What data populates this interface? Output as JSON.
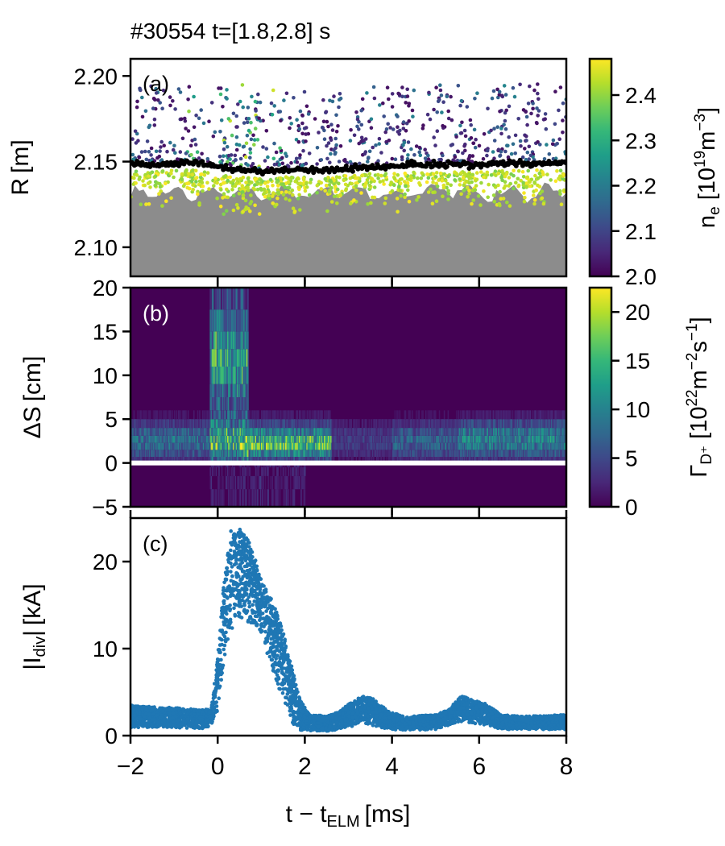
{
  "title": "#30554 t=[1.8,2.8] s",
  "colors": {
    "viridis": [
      "#440154",
      "#482878",
      "#3e4989",
      "#31688e",
      "#26828e",
      "#1f9e89",
      "#35b779",
      "#6ece58",
      "#b5de2b",
      "#fde725"
    ],
    "separatrix": "#000000",
    "core_fill": "#8c8c8c",
    "current": "#1f77b4",
    "strike_line": "#ffffff"
  },
  "chart_data": [
    {
      "panel": "(a)",
      "type": "scatter",
      "xlim": [
        -2,
        8
      ],
      "ylim": [
        2.083,
        2.21
      ],
      "ylabel_main": "R",
      "ylabel_unit": "[m]",
      "yticks": [
        "2.10",
        "2.15",
        "2.20"
      ],
      "ytick_values": [
        2.1,
        2.15,
        2.2
      ],
      "separatrix_R": [
        [
          -2,
          2.149
        ],
        [
          -1.5,
          2.148
        ],
        [
          -1,
          2.149
        ],
        [
          -0.5,
          2.149
        ],
        [
          0,
          2.147
        ],
        [
          0.5,
          2.145
        ],
        [
          1,
          2.144
        ],
        [
          1.5,
          2.145
        ],
        [
          2,
          2.145
        ],
        [
          2.5,
          2.145
        ],
        [
          3,
          2.146
        ],
        [
          3.5,
          2.147
        ],
        [
          4,
          2.147
        ],
        [
          4.5,
          2.148
        ],
        [
          5,
          2.148
        ],
        [
          5.5,
          2.148
        ],
        [
          6,
          2.148
        ],
        [
          6.5,
          2.149
        ],
        [
          7,
          2.149
        ],
        [
          7.5,
          2.149
        ],
        [
          8,
          2.149
        ]
      ],
      "core_fill_top_R": 2.132,
      "colorbar": {
        "label_main": "n",
        "label_sub": "e",
        "label_unit_pre": " [10",
        "label_exp": "19",
        "label_unit_mid": "m",
        "label_exp2": "−3",
        "label_close": "]",
        "range": [
          2.0,
          2.48
        ],
        "ticks": [
          "2.0",
          "2.1",
          "2.2",
          "2.3",
          "2.4"
        ],
        "tick_values": [
          2.0,
          2.1,
          2.2,
          2.3,
          2.4
        ]
      },
      "legend": "none"
    },
    {
      "panel": "(b)",
      "type": "heatmap",
      "xlim": [
        -2,
        8
      ],
      "ylim": [
        -5,
        20
      ],
      "ylabel_main": "ΔS",
      "ylabel_unit": "[cm]",
      "yticks": [
        "−5",
        "0",
        "5",
        "10",
        "15",
        "20"
      ],
      "ytick_values": [
        -5,
        0,
        5,
        10,
        15,
        20
      ],
      "strike_line_dS": 0,
      "colorbar": {
        "label_main": "Γ",
        "label_sub": "D⁺",
        "label_unit_pre": " [10",
        "label_exp": "22",
        "label_unit_mid": "m",
        "label_exp2": "−2",
        "label_unit_mid2": "s",
        "label_exp3": "−1",
        "label_close": "]",
        "range": [
          0,
          22.5
        ],
        "ticks": [
          "0",
          "5",
          "10",
          "15",
          "20"
        ],
        "tick_values": [
          0,
          5,
          10,
          15,
          20
        ]
      }
    },
    {
      "panel": "(c)",
      "type": "scatter",
      "xlim": [
        -2,
        8
      ],
      "ylim": [
        0,
        25
      ],
      "ylabel_main": "|I",
      "ylabel_sub": "div",
      "ylabel_close": "|",
      "ylabel_unit": "[kA]",
      "yticks": [
        "0",
        "10",
        "20"
      ],
      "ytick_values": [
        0,
        10,
        20
      ],
      "xticks": [
        "−2",
        "0",
        "2",
        "4",
        "6",
        "8"
      ],
      "xtick_values": [
        -2,
        0,
        2,
        4,
        6,
        8
      ],
      "xlabel_main": "t − t",
      "xlabel_sub": "ELM",
      "xlabel_unit": "[ms]",
      "envelope_upper": [
        [
          -2,
          3.5
        ],
        [
          -1.5,
          3.3
        ],
        [
          -1,
          3.2
        ],
        [
          -0.5,
          3.0
        ],
        [
          -0.15,
          3.0
        ],
        [
          0,
          9
        ],
        [
          0.15,
          18
        ],
        [
          0.3,
          23.5
        ],
        [
          0.5,
          24
        ],
        [
          0.7,
          22.5
        ],
        [
          0.9,
          20
        ],
        [
          1.1,
          17
        ],
        [
          1.3,
          15
        ],
        [
          1.5,
          12
        ],
        [
          1.7,
          8
        ],
        [
          1.9,
          4
        ],
        [
          2.1,
          2.5
        ],
        [
          2.5,
          2.2
        ],
        [
          2.8,
          2.8
        ],
        [
          3.0,
          3.6
        ],
        [
          3.3,
          4.6
        ],
        [
          3.6,
          4.2
        ],
        [
          3.9,
          2.8
        ],
        [
          4.3,
          2.2
        ],
        [
          5.0,
          2.4
        ],
        [
          5.3,
          3.0
        ],
        [
          5.6,
          4.6
        ],
        [
          5.9,
          4.0
        ],
        [
          6.2,
          3.6
        ],
        [
          6.5,
          2.4
        ],
        [
          7.0,
          2.2
        ],
        [
          7.5,
          2.3
        ],
        [
          8,
          2.4
        ]
      ],
      "envelope_lower": [
        [
          -2,
          0.9
        ],
        [
          -1,
          0.9
        ],
        [
          -0.15,
          0.8
        ],
        [
          0,
          3
        ],
        [
          0.15,
          9
        ],
        [
          0.3,
          12
        ],
        [
          0.5,
          13.5
        ],
        [
          0.7,
          13
        ],
        [
          0.9,
          12.5
        ],
        [
          1.1,
          10
        ],
        [
          1.3,
          7
        ],
        [
          1.5,
          4
        ],
        [
          1.7,
          1.5
        ],
        [
          1.9,
          0.6
        ],
        [
          2.5,
          0.5
        ],
        [
          3.0,
          0.9
        ],
        [
          3.3,
          1.5
        ],
        [
          3.6,
          1.1
        ],
        [
          4.0,
          0.6
        ],
        [
          5.0,
          0.7
        ],
        [
          5.6,
          1.6
        ],
        [
          6.2,
          1.2
        ],
        [
          6.5,
          0.7
        ],
        [
          8,
          0.7
        ]
      ]
    }
  ]
}
